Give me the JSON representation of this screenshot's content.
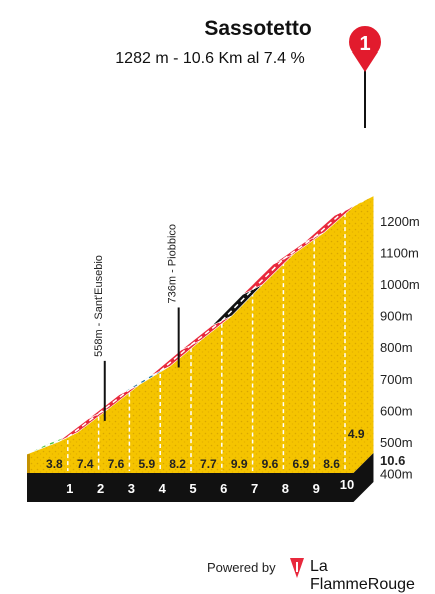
{
  "chart_data": {
    "type": "area",
    "title": "Sassotetto",
    "subtitle": "1282 m - 10.6 Km al 7.4 %",
    "marker_number": "1",
    "km_ticks": [
      "1",
      "2",
      "3",
      "4",
      "5",
      "6",
      "7",
      "8",
      "9",
      "10"
    ],
    "total_distance_label": "10.6",
    "altitude_ticks": [
      "400m",
      "500m",
      "600m",
      "700m",
      "800m",
      "900m",
      "1000m",
      "1100m",
      "1200m"
    ],
    "altitude_tick_values": [
      400,
      500,
      600,
      700,
      800,
      900,
      1000,
      1100,
      1200
    ],
    "segments": [
      {
        "start_km": 0,
        "end_km": 1,
        "gradient": "3.8",
        "color": "#4ec23a"
      },
      {
        "start_km": 1,
        "end_km": 2,
        "gradient": "7.4",
        "color": "#e8283c"
      },
      {
        "start_km": 2,
        "end_km": 3,
        "gradient": "7.6",
        "color": "#e8283c"
      },
      {
        "start_km": 3,
        "end_km": 4,
        "gradient": "5.9",
        "color": "#1e6fa0"
      },
      {
        "start_km": 4,
        "end_km": 5,
        "gradient": "8.2",
        "color": "#e8283c"
      },
      {
        "start_km": 5,
        "end_km": 6,
        "gradient": "7.7",
        "color": "#e8283c"
      },
      {
        "start_km": 6,
        "end_km": 7,
        "gradient": "9.9",
        "color": "#111111"
      },
      {
        "start_km": 7,
        "end_km": 8,
        "gradient": "9.6",
        "color": "#e8283c"
      },
      {
        "start_km": 8,
        "end_km": 9,
        "gradient": "6.9",
        "color": "#e8283c"
      },
      {
        "start_km": 9,
        "end_km": 10,
        "gradient": "8.6",
        "color": "#e8283c"
      },
      {
        "start_km": 10,
        "end_km": 10.6,
        "gradient": "4.9",
        "color": "#1e6fa0"
      }
    ],
    "waypoints": [
      {
        "label": "558m - Sant'Eusebio",
        "km": 2.2
      },
      {
        "label": "736m - Piobbico",
        "km": 4.6
      }
    ],
    "fill_color": "#f5c500",
    "base_color": "#111111"
  },
  "footer": {
    "powered_by": "Powered by",
    "brand": "La FlammeRouge",
    "brand_color": "#e8283c"
  }
}
